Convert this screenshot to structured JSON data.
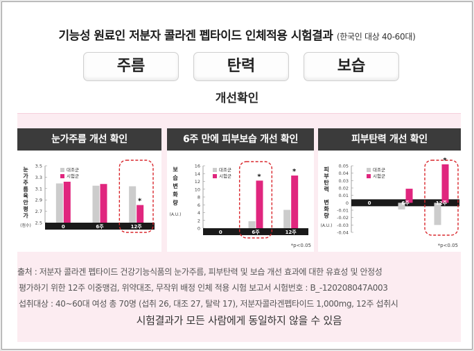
{
  "header": {
    "title": "기능성 원료인 저분자 콜라겐 펩타이드 인체적용 시험결과",
    "subtitle": "(한국인 대상 40-60대)"
  },
  "benefits": [
    "주름",
    "탄력",
    "보습"
  ],
  "section_title": "개선확인",
  "colors": {
    "control": "#cccccc",
    "test": "#e0267e",
    "panel_header": "#3b3b3b",
    "band": "#fcecf1",
    "dash": "#d9262c"
  },
  "chart_data": [
    {
      "type": "bar",
      "title": "눈가주름 개선 확인",
      "ylabel": "눈가주름육안평가",
      "yunit": "(점수)",
      "categories": [
        "0",
        "6주",
        "12주"
      ],
      "series": [
        {
          "name": "대조군",
          "values": [
            3.19,
            3.15,
            3.14
          ]
        },
        {
          "name": "시험군",
          "values": [
            3.22,
            3.18,
            2.81
          ]
        }
      ],
      "ylim": [
        2.5,
        3.5
      ],
      "yticks": [
        "2.5",
        "2.7",
        "2.9",
        "3.1",
        "3.3",
        "3.5"
      ],
      "significance": [
        "",
        "",
        "*"
      ],
      "highlight": "12주",
      "legend": "top-left"
    },
    {
      "type": "bar",
      "title": "6주 만에 피부보습 개선 확인",
      "ylabel": "보습변화량",
      "yunit": "(A.U.)",
      "categories": [
        "0",
        "6주",
        "12주"
      ],
      "series": [
        {
          "name": "대조군",
          "values": [
            0,
            1.8,
            4.7
          ]
        },
        {
          "name": "시험군",
          "values": [
            0,
            12.2,
            13.5
          ]
        }
      ],
      "ylim": [
        0,
        16
      ],
      "yticks": [
        "0",
        "2",
        "4",
        "6",
        "8",
        "10",
        "12",
        "14",
        "16"
      ],
      "significance": [
        "",
        "*",
        "*"
      ],
      "highlight": "6주",
      "footnote": "*p<0.05",
      "legend": "top-left"
    },
    {
      "type": "bar",
      "title": "피부탄력 개선 확인",
      "ylabel": "피부탄력 변화량",
      "yunit": "(A.U.)",
      "categories": [
        "0",
        "6주",
        "12주"
      ],
      "series": [
        {
          "name": "대조군",
          "values": [
            0,
            -0.009,
            -0.03
          ]
        },
        {
          "name": "시험군",
          "values": [
            0,
            0.019,
            0.052
          ]
        }
      ],
      "ylim": [
        -0.04,
        0.05
      ],
      "yticks": [
        "-0.04",
        "-0.03",
        "-0.02",
        "-0.01",
        "0",
        "0.01",
        "0.02",
        "0.03",
        "0.04",
        "0.05"
      ],
      "significance": [
        "",
        "",
        "*"
      ],
      "highlight": "12주",
      "footnote": "*p<0.05",
      "legend": "top-left"
    }
  ],
  "notes": [
    "출처 : 저분자 콜라겐 펩타이드 건강기능식품의 눈가주름, 피부탄력 및 보습 개선 효과에 대한 유효성 및 안정성",
    "평가하기 위한 12주 이중맹검, 위약대조, 무작위 배정 인체 적용 시험 보고서 시험번호 : B_-120208047A003",
    "섭취대상 : 40~60대 여성 총 70명 (섭취 26,  대조 27, 탈락 17), 저분자콜라겐펩타이드 1,000mg, 12주 섭취시"
  ],
  "disclaimer": "시험결과가 모든 사람에게 동일하지 않을 수 있음"
}
